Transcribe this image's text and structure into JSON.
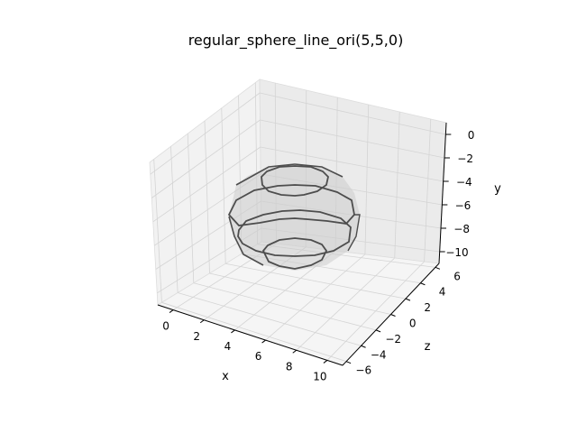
{
  "chart_data": {
    "type": "3d-wireframe",
    "title": "regular_sphere_line_ori(5,5,0)",
    "xlabel": "x",
    "ylabel": "y",
    "zlabel": "z",
    "x_ticks": [
      "0",
      "2",
      "4",
      "6",
      "8",
      "10"
    ],
    "y_ticks": [
      "0",
      "−2",
      "−4",
      "−6",
      "−8",
      "−10"
    ],
    "z_ticks": [
      "−6",
      "−4",
      "−2",
      "0",
      "2",
      "4",
      "6"
    ],
    "xlim": [
      -1,
      11
    ],
    "ylim": [
      -11,
      1
    ],
    "zlim": [
      -6.5,
      6.5
    ],
    "sphere": {
      "center": [
        5,
        5,
        0
      ],
      "rings": 4
    },
    "grid": true,
    "colors": {
      "pane": "#f2f2f2",
      "grid": "#d4d4d4",
      "line": "#4d4d4d",
      "face": "#c8c8c8"
    }
  }
}
